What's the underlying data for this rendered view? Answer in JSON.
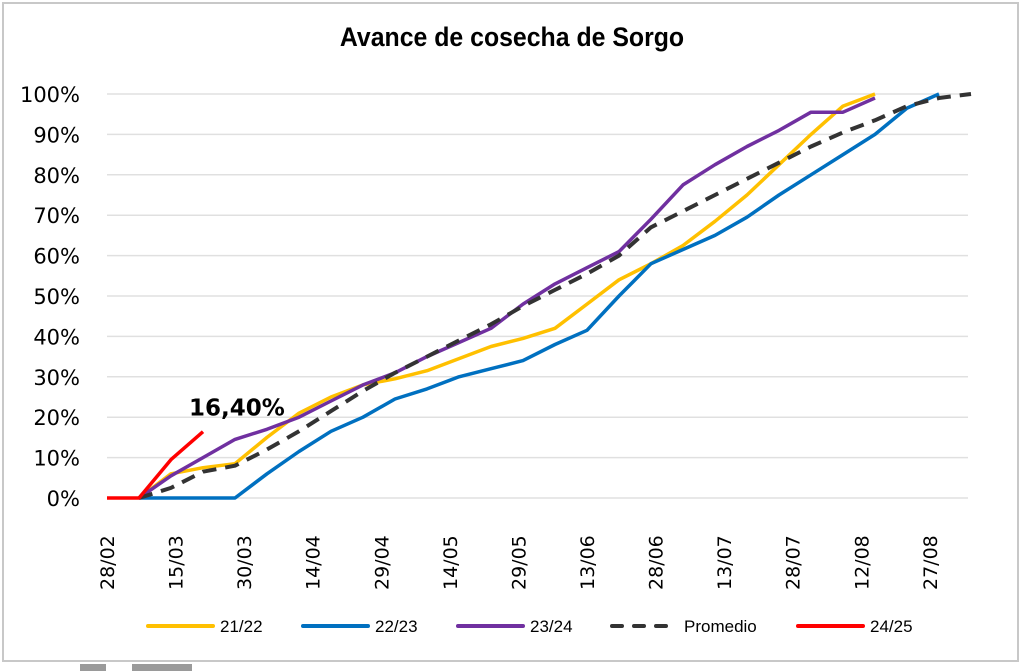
{
  "chart_data": {
    "type": "line",
    "title": "Avance de cosecha de Sorgo",
    "xlabel": "",
    "ylabel": "",
    "ylim": [
      0,
      100
    ],
    "grid": true,
    "legend_position": "bottom",
    "y_ticks": [
      "0%",
      "10%",
      "20%",
      "30%",
      "40%",
      "50%",
      "60%",
      "70%",
      "80%",
      "90%",
      "100%"
    ],
    "y_tick_values": [
      0,
      10,
      20,
      30,
      40,
      50,
      60,
      70,
      80,
      90,
      100
    ],
    "x_ticks": [
      "28/02",
      "15/03",
      "30/03",
      "14/04",
      "29/04",
      "14/05",
      "29/05",
      "13/06",
      "28/06",
      "13/07",
      "28/07",
      "12/08",
      "27/08"
    ],
    "x_unit": "days since 28/02",
    "x_tick_values": [
      0,
      15,
      30,
      45,
      60,
      75,
      90,
      105,
      120,
      135,
      150,
      165,
      180
    ],
    "xlim": [
      0,
      189
    ],
    "annotation": {
      "text": "16,40%",
      "x": 21,
      "y": 16.4
    },
    "series": [
      {
        "name": "21/22",
        "color": "#FFC000",
        "dashed": false,
        "x": [
          7,
          14,
          21,
          28,
          35,
          42,
          49,
          56,
          63,
          70,
          77,
          84,
          91,
          98,
          105,
          112,
          119,
          126,
          133,
          140,
          147,
          154,
          161,
          168
        ],
        "values": [
          0,
          6,
          7.5,
          8.5,
          15,
          21,
          25,
          28,
          29.5,
          31.5,
          34.5,
          37.5,
          39.5,
          42,
          48,
          54,
          58,
          62.5,
          68.5,
          75,
          82.5,
          90,
          97,
          100
        ]
      },
      {
        "name": "22/23",
        "color": "#0070C0",
        "dashed": false,
        "x": [
          7,
          14,
          21,
          28,
          35,
          42,
          49,
          56,
          63,
          70,
          77,
          84,
          91,
          98,
          105,
          112,
          119,
          126,
          133,
          140,
          147,
          154,
          161,
          168,
          175,
          182
        ],
        "values": [
          0,
          0,
          0,
          0,
          6,
          11.5,
          16.5,
          20,
          24.5,
          27,
          30,
          32,
          34,
          38,
          41.5,
          50,
          58,
          61.5,
          65,
          69.5,
          75,
          80,
          85,
          90,
          96.5,
          100
        ]
      },
      {
        "name": "23/24",
        "color": "#7030A0",
        "dashed": false,
        "x": [
          7,
          14,
          21,
          28,
          35,
          42,
          49,
          56,
          63,
          70,
          77,
          84,
          91,
          98,
          105,
          112,
          119,
          126,
          133,
          140,
          147,
          154,
          161,
          168
        ],
        "values": [
          0,
          5.5,
          10,
          14.5,
          17,
          20,
          24,
          28,
          31,
          35,
          38.5,
          42,
          48,
          53,
          57,
          61,
          69,
          77.5,
          82.5,
          87,
          91,
          95.5,
          95.5,
          99
        ]
      },
      {
        "name": "Promedio",
        "color": "#333333",
        "dashed": true,
        "x": [
          7,
          14,
          21,
          28,
          35,
          42,
          49,
          56,
          63,
          70,
          77,
          84,
          91,
          98,
          105,
          112,
          119,
          126,
          133,
          140,
          147,
          154,
          161,
          168,
          175,
          182,
          189
        ],
        "values": [
          0,
          2.5,
          6.5,
          8,
          12,
          16.5,
          21.5,
          26.5,
          31,
          35,
          39,
          43,
          47.5,
          51.5,
          55.5,
          60,
          67,
          71,
          75,
          79,
          83,
          87,
          90.5,
          93.5,
          97,
          99,
          100
        ]
      },
      {
        "name": "24/25",
        "color": "#FF0000",
        "dashed": false,
        "x": [
          0,
          7,
          14,
          21
        ],
        "values": [
          0,
          0,
          9.5,
          16.4
        ]
      }
    ]
  }
}
